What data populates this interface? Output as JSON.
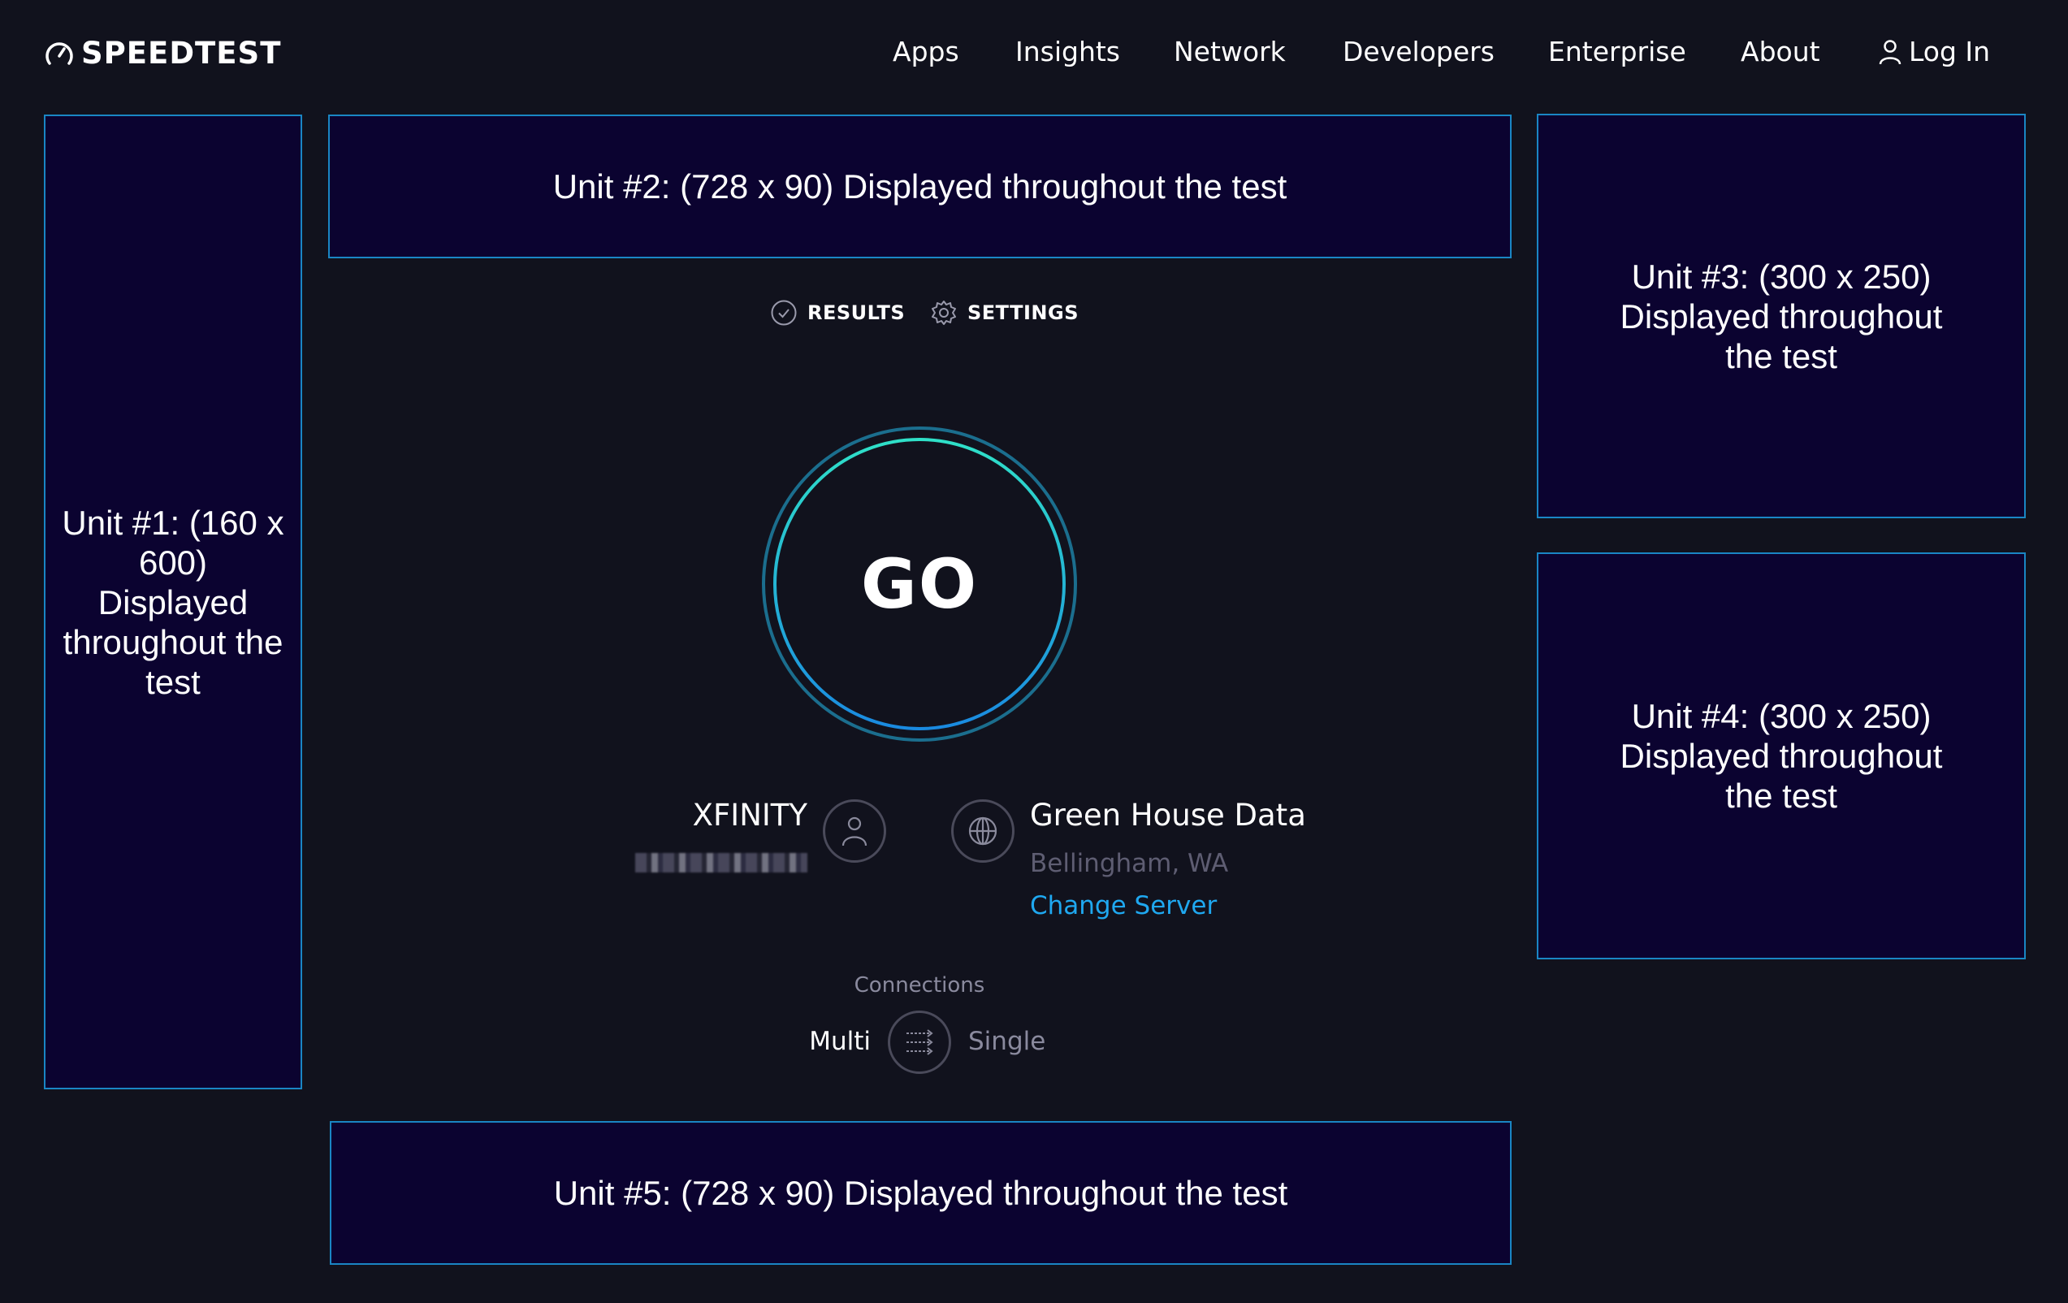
{
  "header": {
    "logo_text": "SPEEDTEST",
    "nav": [
      "Apps",
      "Insights",
      "Network",
      "Developers",
      "Enterprise",
      "About"
    ],
    "login_label": "Log In"
  },
  "ads": {
    "unit1": "Unit #1: (160 x 600) Displayed throughout the test",
    "unit2": "Unit #2: (728 x 90) Displayed throughout the test",
    "unit3": "Unit #3: (300 x 250) Displayed throughout the test",
    "unit4": "Unit #4: (300 x 250) Displayed throughout the test",
    "unit5": "Unit #5: (728 x 90) Displayed throughout the test"
  },
  "tabs": {
    "results": "RESULTS",
    "settings": "SETTINGS"
  },
  "go_label": "GO",
  "provider": {
    "name": "XFINITY"
  },
  "server": {
    "name": "Green House Data",
    "location": "Bellingham, WA",
    "change_label": "Change Server"
  },
  "connections": {
    "label": "Connections",
    "multi": "Multi",
    "single": "Single",
    "selected": "Multi"
  },
  "colors": {
    "background": "#11121d",
    "ad_fill": "#0b0330",
    "ad_border": "#1a86c4",
    "link": "#1fa8f0",
    "go_ring_start": "#2fe0c8",
    "go_ring_end": "#1a8ae0"
  }
}
